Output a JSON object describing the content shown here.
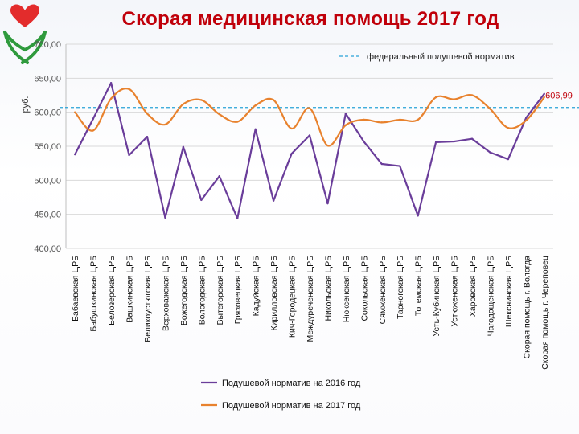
{
  "title": "Скорая медицинская помощь 2017 год",
  "logo_icon": "heart-hands-icon",
  "chart_data": {
    "type": "line",
    "ylabel": "руб.",
    "ylim": [
      400,
      700
    ],
    "yticks": [
      "400,00",
      "450,00",
      "500,00",
      "550,00",
      "600,00",
      "650,00",
      "700,00"
    ],
    "categories": [
      "Бабаевская ЦРБ",
      "Бабушкинская ЦРБ",
      "Белозерская ЦРБ",
      "Вашкинская ЦРБ",
      "Великоустюгская ЦРБ",
      "Верховажская ЦРБ",
      "Вожегодская ЦРБ",
      "Вологодская ЦРБ",
      "Вытегорская ЦРБ",
      "Грязовецкая ЦРБ",
      "Кадуйская ЦРБ",
      "Кирилловская ЦРБ",
      "Кич-Городецкая ЦРБ",
      "Междуреченская ЦРБ",
      "Никольская ЦРБ",
      "Нюксенская ЦРБ",
      "Сокольская ЦРБ",
      "Сямженская ЦРБ",
      "Тарногская ЦРБ",
      "Тотемская ЦРБ",
      "Усть-Кубинская ЦРБ",
      "Устюженская ЦРБ",
      "Харовская ЦРБ",
      "Чагодощенская ЦРБ",
      "Шекснинская ЦРБ",
      "Скорая помощь г. Вологда",
      "Скорая помощь г. Череповец"
    ],
    "series": [
      {
        "name": "Подушевой норматив на 2016 год",
        "color": "#6a3d9a",
        "values": [
          538,
          590,
          643,
          537,
          564,
          445,
          549,
          471,
          506,
          444,
          575,
          470,
          539,
          566,
          466,
          598,
          557,
          524,
          521,
          448,
          556,
          557,
          561,
          541,
          531,
          592,
          627
        ]
      },
      {
        "name": "Подушевой норматив на 2017 год",
        "color": "#e8822e",
        "values": [
          600,
          573,
          620,
          634,
          598,
          582,
          612,
          618,
          597,
          586,
          610,
          618,
          576,
          606,
          551,
          581,
          589,
          585,
          589,
          589,
          622,
          619,
          625,
          605,
          577,
          588,
          622
        ]
      }
    ],
    "reference_line": {
      "label": "федеральный  подушевой норматив",
      "value": 606.99,
      "value_label": "606,99",
      "color": "#29a3d8"
    }
  }
}
